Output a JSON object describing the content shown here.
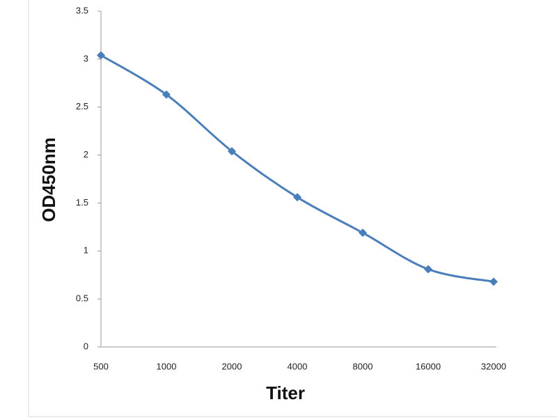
{
  "chart_data": {
    "type": "line",
    "x_label": "Titer",
    "y_label": "OD450nm",
    "categories": [
      "500",
      "1000",
      "2000",
      "4000",
      "8000",
      "16000",
      "32000"
    ],
    "values": [
      3.04,
      2.63,
      2.04,
      1.56,
      1.19,
      0.81,
      0.68
    ],
    "color": "#4a7ebb",
    "ylim": [
      0,
      3.5
    ],
    "yticks": [
      0,
      0.5,
      1,
      1.5,
      2,
      2.5,
      3,
      3.5
    ]
  }
}
